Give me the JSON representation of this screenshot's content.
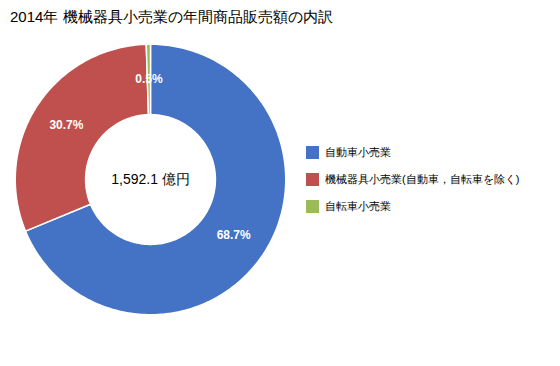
{
  "chart_data": {
    "type": "pie",
    "title": "2014年 機械器具小売業の年間商品販売額の内訳",
    "categories": [
      "自動車小売業",
      "機械器具小売業(自動車，自転車を除く)",
      "自転車小売業"
    ],
    "values": [
      68.7,
      30.7,
      0.5
    ],
    "value_labels": [
      "68.7%",
      "30.7%",
      "0.5%"
    ],
    "colors": [
      "#4472C4",
      "#C0504D",
      "#9BBB59"
    ],
    "annotations": [
      "1,592.1 億円"
    ],
    "data_labels": true,
    "legend": "right",
    "tick_labels": false
  }
}
